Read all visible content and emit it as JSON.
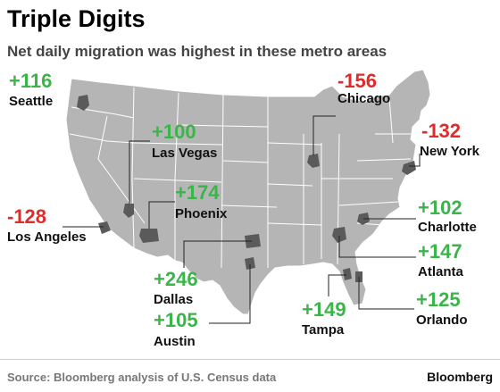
{
  "title": "Triple Digits",
  "subtitle": "Net daily migration was highest in these metro areas",
  "source": "Source: Bloomberg analysis of U.S. Census data",
  "brand": "Bloomberg",
  "colors": {
    "positive": "#3bb54a",
    "negative": "#e02b2b",
    "map_fill": "#b5b5b5",
    "map_stroke": "#ffffff",
    "metro_fill": "#5a5a5a"
  },
  "metros": [
    {
      "id": "seattle",
      "city": "Seattle",
      "value": "+116"
    },
    {
      "id": "chicago",
      "city": "Chicago",
      "value": "-156"
    },
    {
      "id": "las-vegas",
      "city": "Las Vegas",
      "value": "+100"
    },
    {
      "id": "new-york",
      "city": "New York",
      "value": "-132"
    },
    {
      "id": "phoenix",
      "city": "Phoenix",
      "value": "+174"
    },
    {
      "id": "los-angeles",
      "city": "Los Angeles",
      "value": "-128"
    },
    {
      "id": "charlotte",
      "city": "Charlotte",
      "value": "+102"
    },
    {
      "id": "atlanta",
      "city": "Atlanta",
      "value": "+147"
    },
    {
      "id": "dallas",
      "city": "Dallas",
      "value": "+246"
    },
    {
      "id": "orlando",
      "city": "Orlando",
      "value": "+125"
    },
    {
      "id": "austin",
      "city": "Austin",
      "value": "+105"
    },
    {
      "id": "tampa",
      "city": "Tampa",
      "value": "+149"
    }
  ]
}
